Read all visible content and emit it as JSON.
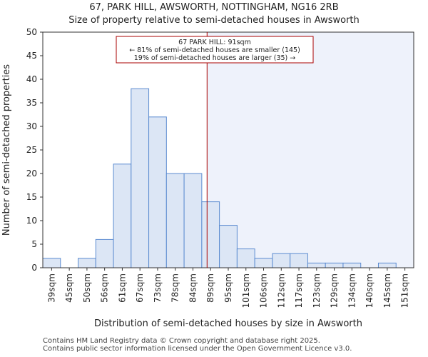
{
  "chart_data": {
    "type": "bar",
    "title": "67, PARK HILL, AWSWORTH, NOTTINGHAM, NG16 2RB",
    "subtitle": "Size of property relative to semi-detached houses in Awsworth",
    "xlabel": "Distribution of semi-detached houses by size in Awsworth",
    "ylabel": "Number of semi-detached properties",
    "categories": [
      "39sqm",
      "45sqm",
      "50sqm",
      "56sqm",
      "61sqm",
      "67sqm",
      "73sqm",
      "78sqm",
      "84sqm",
      "89sqm",
      "95sqm",
      "101sqm",
      "106sqm",
      "112sqm",
      "117sqm",
      "123sqm",
      "129sqm",
      "134sqm",
      "140sqm",
      "145sqm",
      "151sqm"
    ],
    "values": [
      2,
      0,
      2,
      6,
      22,
      38,
      32,
      20,
      20,
      14,
      9,
      4,
      2,
      3,
      3,
      1,
      1,
      1,
      0,
      1,
      0
    ],
    "ylim": [
      0,
      50
    ],
    "yticks": [
      0,
      5,
      10,
      15,
      20,
      25,
      30,
      35,
      40,
      45,
      50
    ],
    "property_marker": {
      "value_bin_position": 9.3,
      "annotation_lines": [
        "67 PARK HILL: 91sqm",
        "← 81% of semi-detached houses are smaller (145)",
        "19% of semi-detached houses are larger (35) →"
      ]
    },
    "colors": {
      "bar_fill": "#dce6f5",
      "bar_edge": "#5b8bd0",
      "marker_line": "#aa0000",
      "highlight_region": "#eef2fb"
    }
  },
  "footer": {
    "line1": "Contains HM Land Registry data © Crown copyright and database right 2025.",
    "line2": "Contains public sector information licensed under the Open Government Licence v3.0."
  }
}
